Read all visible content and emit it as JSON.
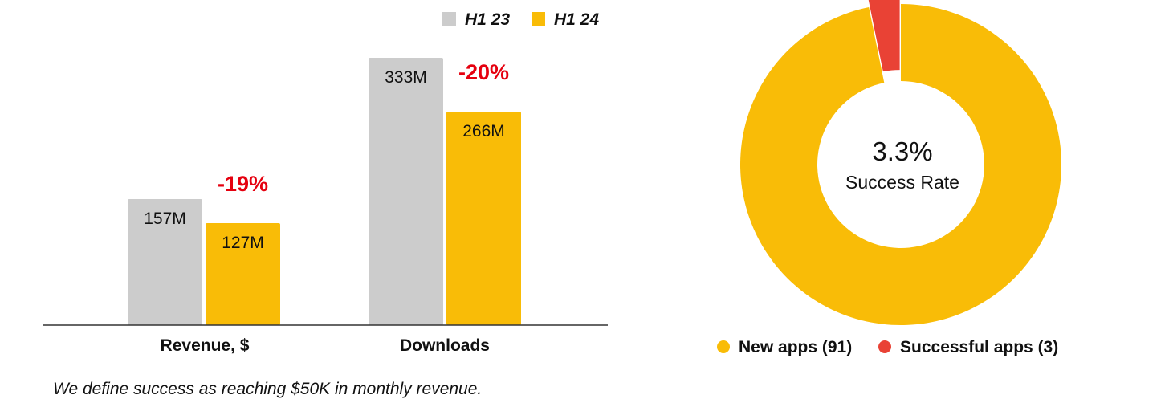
{
  "colors": {
    "h1_23": "#cccccc",
    "h1_24": "#f9bc07",
    "change": "#e5000f",
    "successful": "#e94235",
    "axis": "#333333"
  },
  "footnote": "We define success as reaching $50K in monthly revenue.",
  "chart_data": [
    {
      "type": "bar",
      "title": "",
      "xlabel": "",
      "ylabel": "",
      "grid": false,
      "legend_position": "top-right",
      "categories": [
        "Revenue, $",
        "Downloads"
      ],
      "series": [
        {
          "name": "H1 23",
          "color": "#cccccc",
          "values": [
            157,
            333
          ],
          "labels": [
            "157M",
            "333M"
          ]
        },
        {
          "name": "H1 24",
          "color": "#f9bc07",
          "values": [
            127,
            266
          ],
          "labels": [
            "127M",
            "266M"
          ]
        }
      ],
      "changes": [
        "-19%",
        "-20%"
      ],
      "units": "M"
    },
    {
      "type": "pie",
      "style": "donut",
      "center_value": "3.3%",
      "center_label": "Success Rate",
      "legend_position": "bottom",
      "slices": [
        {
          "name": "New apps (91)",
          "value": 91,
          "color": "#f9bc07"
        },
        {
          "name": "Successful apps (3)",
          "value": 3,
          "color": "#e94235"
        }
      ]
    }
  ]
}
